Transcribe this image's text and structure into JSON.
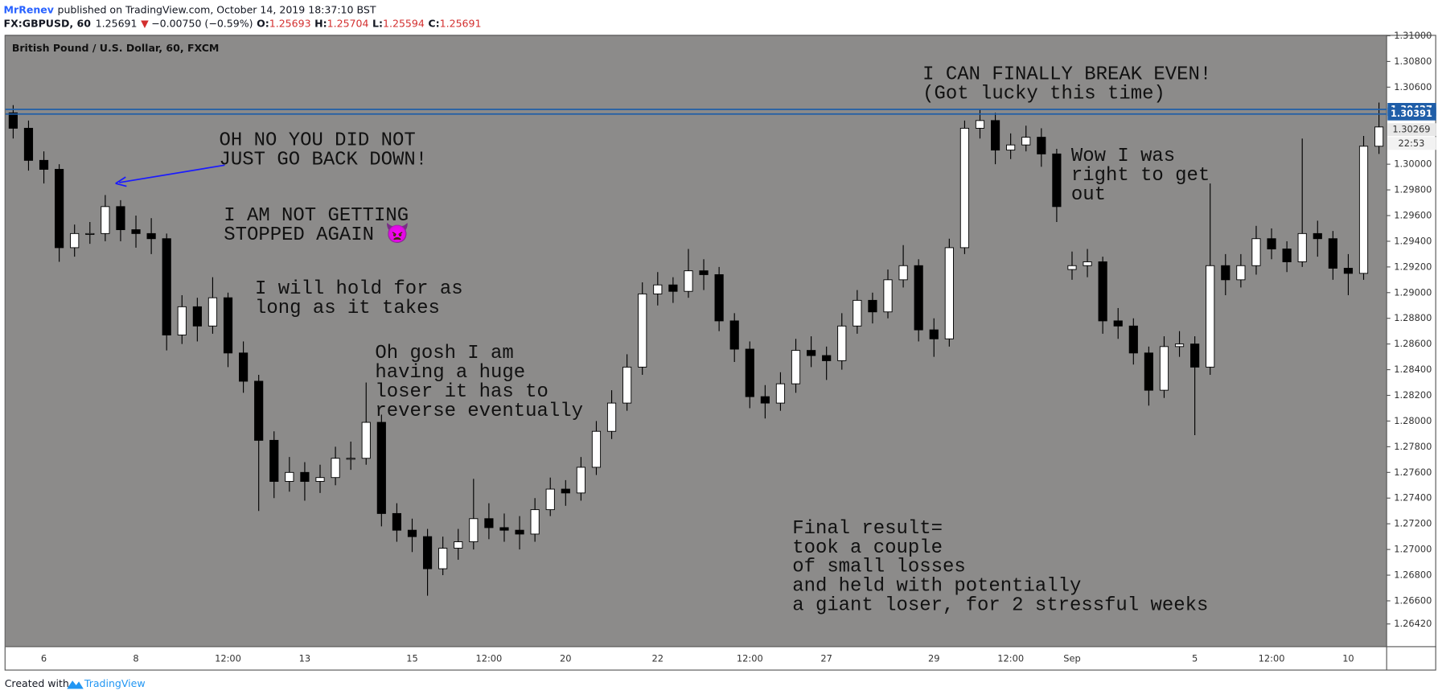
{
  "header": {
    "author": "MrRenev",
    "published": "published on TradingView.com, October 14, 2019 18:37:10 BST",
    "symbol": "FX:GBPUSD, 60",
    "last": "1.25691",
    "arrow": "▼",
    "change": "−0.00750 (−0.59%)",
    "ohlc": [
      {
        "label": "O:",
        "value": "1.25693"
      },
      {
        "label": "H:",
        "value": "1.25704"
      },
      {
        "label": "L:",
        "value": "1.25594"
      },
      {
        "label": "C:",
        "value": "1.25691"
      }
    ]
  },
  "footer": {
    "text": "Created with",
    "brand": "TradingView"
  },
  "chart_data": {
    "type": "candlestick",
    "title": "British Pound / U.S. Dollar, 60, FXCM",
    "categories": [
      null,
      null,
      "6",
      null,
      null,
      null,
      null,
      null,
      "8",
      null,
      null,
      null,
      null,
      null,
      "12:00",
      null,
      null,
      null,
      null,
      "13",
      null,
      null,
      null,
      null,
      null,
      null,
      "15",
      null,
      null,
      null,
      null,
      "12:00",
      null,
      null,
      null,
      null,
      "20",
      null,
      null,
      null,
      null,
      null,
      "22",
      null,
      null,
      null,
      null,
      null,
      "12:00",
      null,
      null,
      null,
      null,
      "27",
      null,
      null,
      null,
      null,
      null,
      null,
      "29",
      null,
      null,
      null,
      null,
      "12:00",
      null,
      null,
      null,
      "Sep",
      null,
      null,
      null,
      null,
      null,
      null,
      null,
      "5",
      null,
      null,
      null,
      null,
      "12:00",
      null,
      null,
      null,
      null,
      "10",
      null,
      null
    ],
    "open": [
      1.304,
      1.3028,
      1.3003,
      1.2996,
      1.2935,
      1.2946,
      1.2946,
      1.2967,
      1.2949,
      1.2946,
      1.2942,
      1.2867,
      1.2889,
      1.2874,
      1.2896,
      1.2853,
      1.2831,
      1.2785,
      1.2753,
      1.276,
      1.2753,
      1.2756,
      1.2771,
      1.2771,
      1.2799,
      1.2728,
      1.2715,
      1.271,
      1.2685,
      1.2701,
      1.2706,
      1.2724,
      1.2717,
      1.2715,
      1.2712,
      1.2731,
      1.2747,
      1.2744,
      1.2764,
      1.2792,
      1.2814,
      1.2842,
      1.2899,
      1.2906,
      1.2901,
      1.2917,
      1.2914,
      1.2878,
      1.2856,
      1.2819,
      1.2814,
      1.2829,
      1.2855,
      1.2851,
      1.2847,
      1.2874,
      1.2894,
      1.2885,
      1.291,
      1.2921,
      1.2871,
      1.2864,
      1.2935,
      1.3028,
      1.3034,
      1.3011,
      1.3015,
      1.3021,
      1.3008,
      1.2918,
      1.2921,
      1.2924,
      1.2878,
      1.2874,
      1.2853,
      1.2824,
      1.2858,
      1.286,
      1.2842,
      1.2921,
      1.291,
      1.2921,
      1.2942,
      1.2934,
      1.2924,
      1.2946,
      1.2942,
      1.2919,
      1.2915,
      1.3014
    ],
    "high": [
      1.3046,
      1.3034,
      1.301,
      1.3,
      1.2953,
      1.2955,
      1.2976,
      1.2972,
      1.296,
      1.2958,
      1.2946,
      1.2898,
      1.2896,
      1.2912,
      1.29,
      1.2862,
      1.2836,
      1.2792,
      1.2772,
      1.2768,
      1.2766,
      1.278,
      1.2784,
      1.283,
      1.2805,
      1.2736,
      1.2724,
      1.2716,
      1.271,
      1.2716,
      1.2755,
      1.2736,
      1.2728,
      1.2726,
      1.274,
      1.2756,
      1.2754,
      1.2772,
      1.28,
      1.2824,
      1.2852,
      1.2908,
      1.2916,
      1.2912,
      1.2934,
      1.2926,
      1.292,
      1.2884,
      1.2862,
      1.2828,
      1.2838,
      1.2864,
      1.2866,
      1.2858,
      1.2884,
      1.2902,
      1.29,
      1.2918,
      1.2937,
      1.2926,
      1.288,
      1.2942,
      1.3034,
      1.3043,
      1.304,
      1.3024,
      1.303,
      1.3028,
      1.3012,
      1.2932,
      1.2934,
      1.2928,
      1.2888,
      1.288,
      1.2858,
      1.2866,
      1.287,
      1.2866,
      1.2985,
      1.293,
      1.293,
      1.2952,
      1.295,
      1.294,
      1.302,
      1.2956,
      1.2948,
      1.293,
      1.3022,
      1.3048
    ],
    "low": [
      1.302,
      1.2995,
      1.2985,
      1.2924,
      1.2928,
      1.2938,
      1.294,
      1.294,
      1.2935,
      1.293,
      1.2855,
      1.286,
      1.2862,
      1.2868,
      1.2842,
      1.2822,
      1.273,
      1.274,
      1.2745,
      1.2738,
      1.2744,
      1.275,
      1.2762,
      1.2766,
      1.2718,
      1.2706,
      1.2698,
      1.2664,
      1.268,
      1.2692,
      1.27,
      1.2708,
      1.2706,
      1.27,
      1.2706,
      1.2726,
      1.2734,
      1.2738,
      1.2758,
      1.2786,
      1.2808,
      1.2836,
      1.289,
      1.2892,
      1.2896,
      1.2902,
      1.287,
      1.2846,
      1.281,
      1.2802,
      1.2808,
      1.2822,
      1.2842,
      1.2832,
      1.284,
      1.2868,
      1.2876,
      1.288,
      1.2904,
      1.2862,
      1.285,
      1.2858,
      1.293,
      1.302,
      1.3,
      1.3004,
      1.301,
      1.2998,
      1.2955,
      1.291,
      1.2912,
      1.2868,
      1.2864,
      1.2844,
      1.2812,
      1.2818,
      1.285,
      1.2789,
      1.2836,
      1.2898,
      1.2904,
      1.2914,
      1.2926,
      1.2916,
      1.292,
      1.2928,
      1.291,
      1.2898,
      1.291,
      1.3008
    ],
    "close": [
      1.3028,
      1.3003,
      1.2996,
      1.2935,
      1.2946,
      1.2946,
      1.2967,
      1.2949,
      1.2946,
      1.2942,
      1.2867,
      1.2889,
      1.2874,
      1.2896,
      1.2853,
      1.2831,
      1.2785,
      1.2753,
      1.276,
      1.2753,
      1.2756,
      1.2771,
      1.2771,
      1.2799,
      1.2728,
      1.2715,
      1.271,
      1.2685,
      1.2701,
      1.2706,
      1.2724,
      1.2717,
      1.2715,
      1.2712,
      1.2731,
      1.2747,
      1.2744,
      1.2764,
      1.2792,
      1.2814,
      1.2842,
      1.2899,
      1.2906,
      1.2901,
      1.2917,
      1.2914,
      1.2878,
      1.2856,
      1.2819,
      1.2814,
      1.2829,
      1.2855,
      1.2851,
      1.2847,
      1.2874,
      1.2894,
      1.2885,
      1.291,
      1.2921,
      1.2871,
      1.2864,
      1.2935,
      1.3028,
      1.3034,
      1.3011,
      1.3015,
      1.3021,
      1.3008,
      1.2967,
      1.2921,
      1.2924,
      1.2878,
      1.2874,
      1.2853,
      1.2824,
      1.2858,
      1.286,
      1.2842,
      1.2921,
      1.291,
      1.2921,
      1.2942,
      1.2934,
      1.2924,
      1.2946,
      1.2942,
      1.2919,
      1.2915,
      1.3014,
      1.3029
    ],
    "up_color": "#ffffff",
    "down_color": "#000000",
    "wick_color": "#000000",
    "background": "#8c8b8a",
    "ylim": [
      1.26243,
      1.31007
    ],
    "yticks": [
      {
        "value": 1.31,
        "label": "1.31000"
      },
      {
        "value": 1.308,
        "label": "1.30800"
      },
      {
        "value": 1.306,
        "label": "1.30600"
      },
      {
        "value": 1.3,
        "label": "1.30000"
      },
      {
        "value": 1.298,
        "label": "1.29800"
      },
      {
        "value": 1.296,
        "label": "1.29600"
      },
      {
        "value": 1.294,
        "label": "1.29400"
      },
      {
        "value": 1.292,
        "label": "1.29200"
      },
      {
        "value": 1.29,
        "label": "1.29000"
      },
      {
        "value": 1.288,
        "label": "1.28800"
      },
      {
        "value": 1.286,
        "label": "1.28600"
      },
      {
        "value": 1.284,
        "label": "1.28400"
      },
      {
        "value": 1.282,
        "label": "1.28200"
      },
      {
        "value": 1.28,
        "label": "1.28000"
      },
      {
        "value": 1.278,
        "label": "1.27800"
      },
      {
        "value": 1.276,
        "label": "1.27600"
      },
      {
        "value": 1.274,
        "label": "1.27400"
      },
      {
        "value": 1.272,
        "label": "1.27200"
      },
      {
        "value": 1.27,
        "label": "1.27000"
      },
      {
        "value": 1.268,
        "label": "1.26800"
      },
      {
        "value": 1.266,
        "label": "1.26600"
      },
      {
        "value": 1.2642,
        "label": "1.26420"
      }
    ],
    "grid": false,
    "levels": [
      {
        "value": 1.30427,
        "color": "#1f5ea8"
      },
      {
        "value": 1.30391,
        "color": "#1f5ea8"
      }
    ],
    "last_price": 1.30269,
    "countdown": "22:53",
    "annotations": [
      {
        "lines": [
          "OH NO YOU DID NOT",
          "JUST GO BACK DOWN!"
        ]
      },
      {
        "lines": [
          "I AM NOT GETTING",
          "STOPPED AGAIN 👿"
        ]
      },
      {
        "lines": [
          "I will hold for as",
          "long as it takes"
        ]
      },
      {
        "lines": [
          "Oh gosh I am",
          "having a huge",
          "loser it has to",
          "reverse eventually"
        ]
      },
      {
        "lines": [
          "I CAN FINALLY BREAK EVEN!",
          "(Got lucky this time)"
        ]
      },
      {
        "lines": [
          "Wow I was",
          "right to get",
          "out"
        ]
      },
      {
        "lines": [
          "Final result=",
          "took a couple",
          "of small losses",
          "and held with potentially",
          "a giant loser, for 2 stressful weeks"
        ]
      }
    ]
  }
}
